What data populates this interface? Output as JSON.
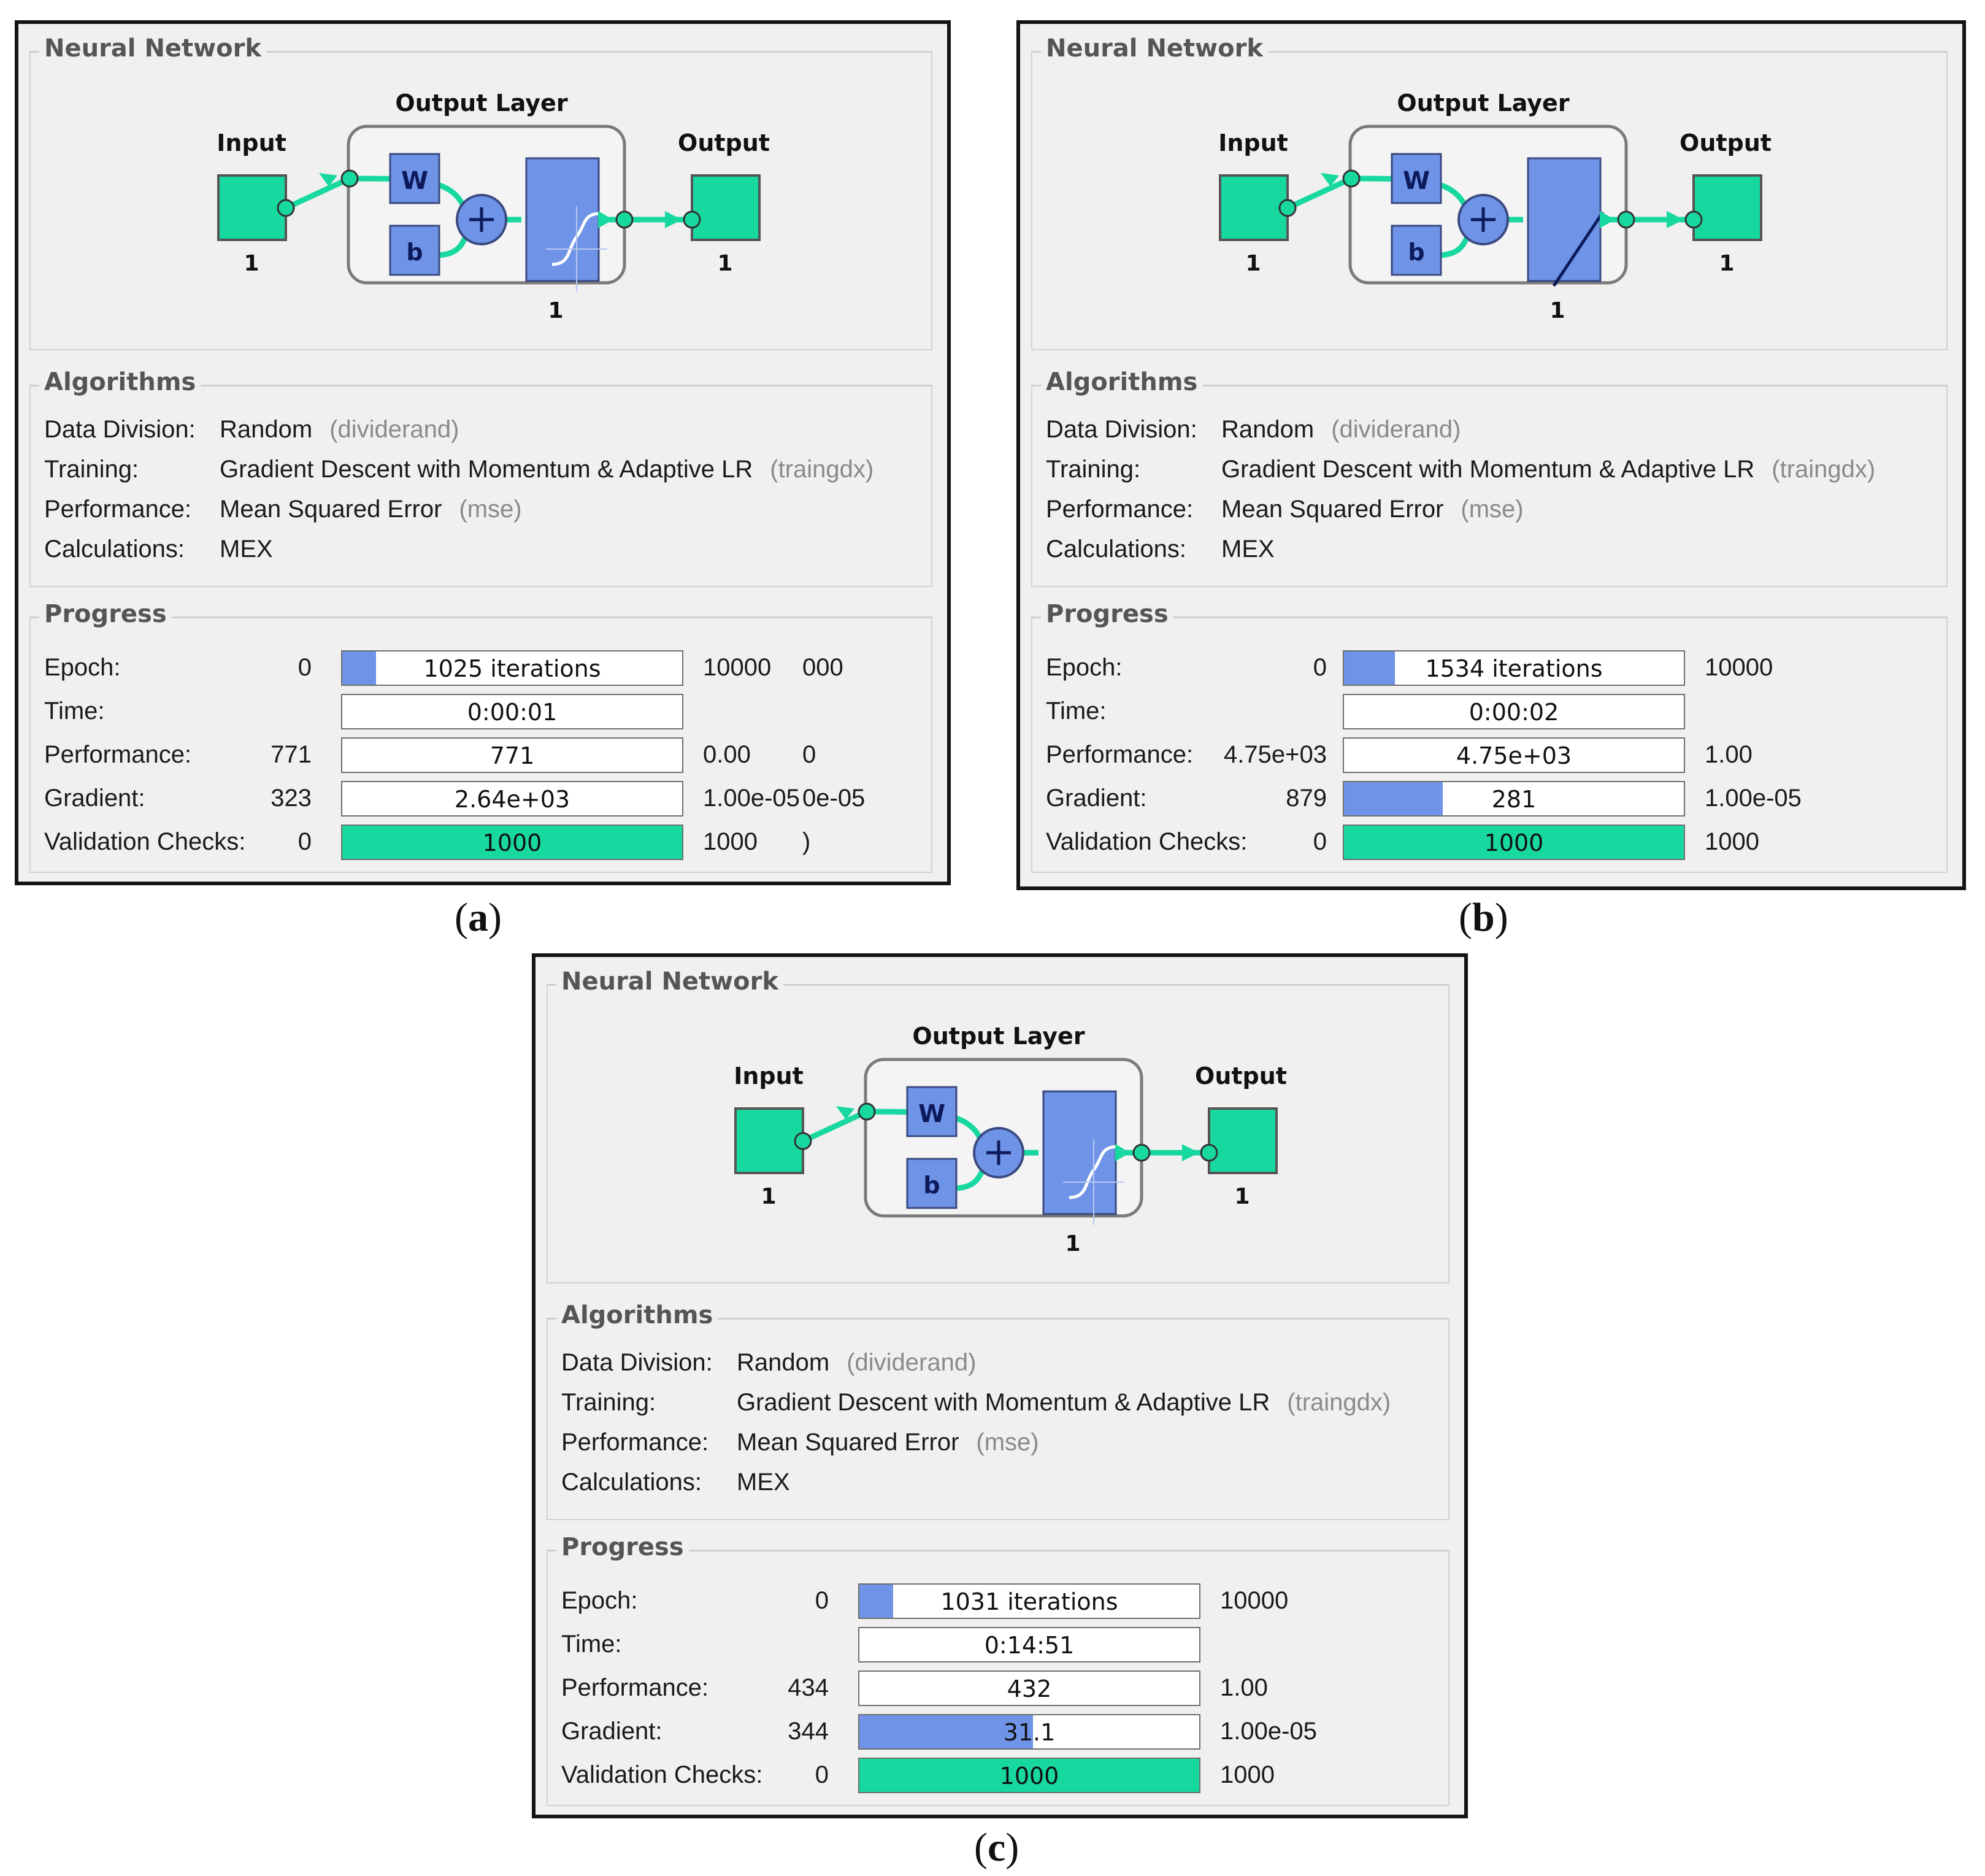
{
  "colors": {
    "input_output_box": "#17d9a0",
    "layer_box": "#6f93e6",
    "progress_blue": "#6f93e6",
    "progress_green": "#17d9a0"
  },
  "panels": [
    {
      "caption_letter": "a",
      "network": {
        "title": "Neural Network",
        "layer_title": "Output Layer",
        "input_label": "Input",
        "output_label": "Output",
        "input_size": "1",
        "output_size": "1",
        "layer_size": "1",
        "weight_label": "W",
        "bias_label": "b",
        "transfer_icon": "tansig-curve-icon"
      },
      "algorithms": {
        "title": "Algorithms",
        "rows": [
          {
            "label": "Data Division:",
            "value": "Random",
            "sub": "(dividerand)"
          },
          {
            "label": "Training:",
            "value": "Gradient Descent with Momentum & Adaptive LR",
            "sub": "(traingdx)"
          },
          {
            "label": "Performance:",
            "value": "Mean Squared Error",
            "sub": "(mse)"
          },
          {
            "label": "Calculations:",
            "value": "MEX",
            "sub": ""
          }
        ]
      },
      "progress": {
        "title": "Progress",
        "rows": [
          {
            "label": "Epoch:",
            "start": "0",
            "bar_text": "1025 iterations",
            "end": "10000",
            "end2": "000",
            "fill": 0.1
          },
          {
            "label": "Time:",
            "start": "",
            "bar_text": "0:00:01",
            "end": "",
            "end2": "",
            "fill": 0
          },
          {
            "label": "Performance:",
            "start": "771",
            "bar_text": "771",
            "end": "0.00",
            "end2": "0",
            "fill": 0
          },
          {
            "label": "Gradient:",
            "start": "323",
            "bar_text": "2.64e+03",
            "end": "1.00e-05",
            "end2": "0e-05",
            "fill": 0
          },
          {
            "label": "Validation Checks:",
            "start": "0",
            "bar_text": "1000",
            "end": "1000",
            "end2": ")",
            "fill": 1.0,
            "green": true
          }
        ]
      }
    },
    {
      "caption_letter": "b",
      "network": {
        "title": "Neural Network",
        "layer_title": "Output Layer",
        "input_label": "Input",
        "output_label": "Output",
        "input_size": "1",
        "output_size": "1",
        "layer_size": "1",
        "weight_label": "W",
        "bias_label": "b",
        "transfer_icon": "purelin-line-icon"
      },
      "algorithms": {
        "title": "Algorithms",
        "rows": [
          {
            "label": "Data Division:",
            "value": "Random",
            "sub": "(dividerand)"
          },
          {
            "label": "Training:",
            "value": "Gradient Descent with Momentum & Adaptive LR",
            "sub": "(traingdx)"
          },
          {
            "label": "Performance:",
            "value": "Mean Squared Error",
            "sub": "(mse)"
          },
          {
            "label": "Calculations:",
            "value": "MEX",
            "sub": ""
          }
        ]
      },
      "progress": {
        "title": "Progress",
        "rows": [
          {
            "label": "Epoch:",
            "start": "0",
            "bar_text": "1534 iterations",
            "end": "10000",
            "end2": "",
            "fill": 0.15
          },
          {
            "label": "Time:",
            "start": "",
            "bar_text": "0:00:02",
            "end": "",
            "end2": "",
            "fill": 0
          },
          {
            "label": "Performance:",
            "start": "4.75e+03",
            "bar_text": "4.75e+03",
            "end": "1.00",
            "end2": "",
            "fill": 0
          },
          {
            "label": "Gradient:",
            "start": "879",
            "bar_text": "281",
            "end": "1.00e-05",
            "end2": "",
            "fill": 0.29
          },
          {
            "label": "Validation Checks:",
            "start": "0",
            "bar_text": "1000",
            "end": "1000",
            "end2": "",
            "fill": 1.0,
            "green": true
          }
        ]
      }
    },
    {
      "caption_letter": "c",
      "network": {
        "title": "Neural Network",
        "layer_title": "Output Layer",
        "input_label": "Input",
        "output_label": "Output",
        "input_size": "1",
        "output_size": "1",
        "layer_size": "1",
        "weight_label": "W",
        "bias_label": "b",
        "transfer_icon": "tansig-curve-icon"
      },
      "algorithms": {
        "title": "Algorithms",
        "rows": [
          {
            "label": "Data Division:",
            "value": "Random",
            "sub": "(dividerand)"
          },
          {
            "label": "Training:",
            "value": "Gradient Descent with Momentum & Adaptive LR",
            "sub": "(traingdx)"
          },
          {
            "label": "Performance:",
            "value": "Mean Squared Error",
            "sub": "(mse)"
          },
          {
            "label": "Calculations:",
            "value": "MEX",
            "sub": ""
          }
        ]
      },
      "progress": {
        "title": "Progress",
        "rows": [
          {
            "label": "Epoch:",
            "start": "0",
            "bar_text": "1031 iterations",
            "end": "10000",
            "end2": "",
            "fill": 0.1
          },
          {
            "label": "Time:",
            "start": "",
            "bar_text": "0:14:51",
            "end": "",
            "end2": "",
            "fill": 0
          },
          {
            "label": "Performance:",
            "start": "434",
            "bar_text": "432",
            "end": "1.00",
            "end2": "",
            "fill": 0
          },
          {
            "label": "Gradient:",
            "start": "344",
            "bar_text": "31.1",
            "end": "1.00e-05",
            "end2": "",
            "fill": 0.51
          },
          {
            "label": "Validation Checks:",
            "start": "0",
            "bar_text": "1000",
            "end": "1000",
            "end2": "",
            "fill": 1.0,
            "green": true
          }
        ]
      }
    }
  ]
}
